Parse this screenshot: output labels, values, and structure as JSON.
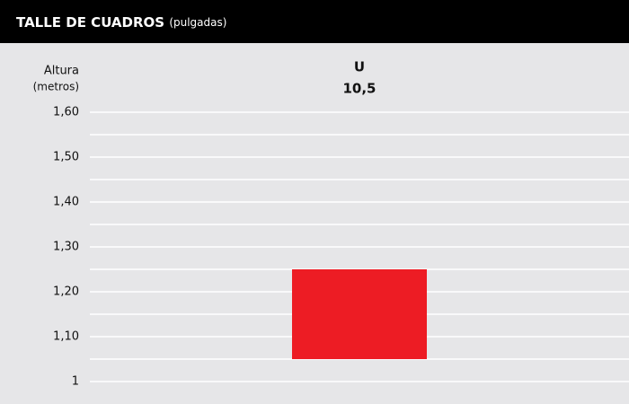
{
  "chart_data": {
    "type": "range_bar",
    "title": "TALLE DE CUADROS",
    "title_unit": "(pulgadas)",
    "ylabel_lines": [
      "Altura",
      "(metros)"
    ],
    "categories": [
      "U"
    ],
    "category_sublabels": [
      "10,5"
    ],
    "low": [
      1.05
    ],
    "high": [
      1.25
    ],
    "color": "#ed1c24",
    "ylim": [
      1,
      1.6
    ],
    "yticks": [
      1,
      {
        "value": 1.1,
        "label": "1,10"
      },
      {
        "value": 1.2,
        "label": "1,20"
      },
      {
        "value": 1.3,
        "label": "1,30"
      },
      {
        "value": 1.4,
        "label": "1,40"
      },
      {
        "value": 1.5,
        "label": "1,50"
      },
      {
        "value": 1.6,
        "label": "1,60"
      }
    ],
    "minor_yticks": [
      1.05,
      1.15,
      1.25,
      1.35,
      1.45,
      1.55
    ],
    "grid": true
  }
}
